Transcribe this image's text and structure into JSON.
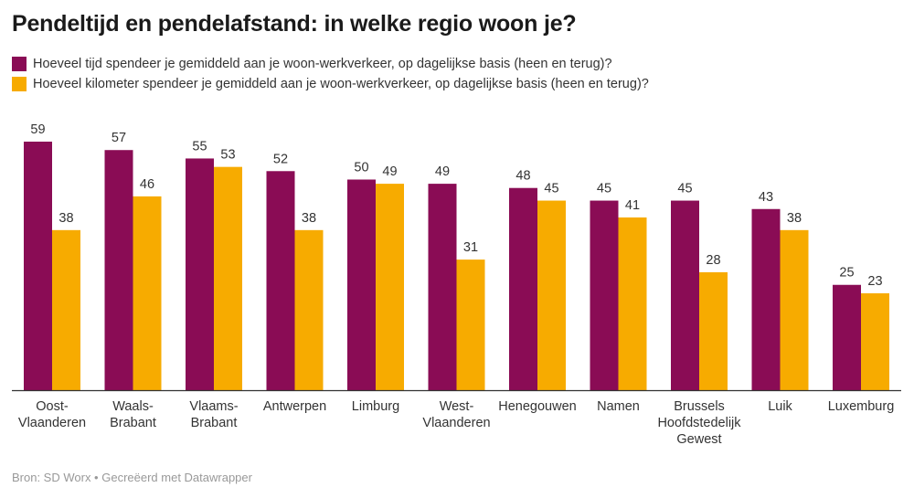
{
  "chart_data": {
    "type": "bar",
    "title": "Pendeltijd en pendelafstand: in welke regio woon je?",
    "categories": [
      [
        "Oost-",
        "Vlaanderen"
      ],
      [
        "Waals-",
        "Brabant"
      ],
      [
        "Vlaams-",
        "Brabant"
      ],
      [
        "Antwerpen"
      ],
      [
        "Limburg"
      ],
      [
        "West-",
        "Vlaanderen"
      ],
      [
        "Henegouwen"
      ],
      [
        "Namen"
      ],
      [
        "Brussels",
        "Hoofdstedelijk",
        "Gewest"
      ],
      [
        "Luik"
      ],
      [
        "Luxemburg"
      ]
    ],
    "series": [
      {
        "name": "Hoeveel tijd spendeer je gemiddeld aan je woon-werkverkeer, op dagelijkse basis (heen en terug)?",
        "color": "#8a0c55",
        "values": [
          59,
          57,
          55,
          52,
          50,
          49,
          48,
          45,
          45,
          43,
          25
        ]
      },
      {
        "name": "Hoeveel kilometer spendeer je gemiddeld aan je woon-werkverkeer, op dagelijkse basis (heen en terug)?",
        "color": "#f7ab00",
        "values": [
          38,
          46,
          53,
          38,
          49,
          31,
          45,
          41,
          28,
          38,
          23
        ]
      }
    ],
    "ylim": [
      0,
      60
    ],
    "grid": false,
    "legend": "top-left",
    "data_labels": true
  },
  "footer": "Bron: SD Worx • Gecreëerd met Datawrapper"
}
